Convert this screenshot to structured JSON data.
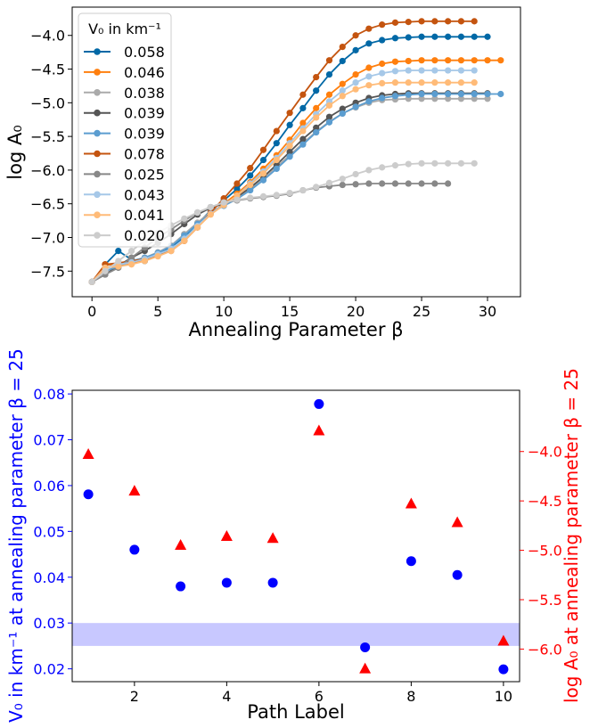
{
  "chart_data": [
    {
      "type": "line",
      "xlabel": "Annealing Parameter β",
      "ylabel": "log A₀",
      "xlim": [
        -1.5,
        32.5
      ],
      "ylim": [
        -7.88,
        -3.58
      ],
      "x_ticks": [
        0,
        5,
        10,
        15,
        20,
        25,
        30
      ],
      "x_tick_labels": [
        "0",
        "5",
        "10",
        "15",
        "20",
        "25",
        "30"
      ],
      "y_ticks": [
        -7.5,
        -7.0,
        -6.5,
        -6.0,
        -5.5,
        -5.0,
        -4.5,
        -4.0
      ],
      "y_tick_labels": [
        "−7.5",
        "−7.0",
        "−6.5",
        "−6.0",
        "−5.5",
        "−5.0",
        "−4.5",
        "−4.0"
      ],
      "grid": false,
      "legend": {
        "title": "V₀ in km⁻¹",
        "placement": "upper-left"
      },
      "series": [
        {
          "name": "0.058",
          "color": "#0068a6",
          "x": [
            0,
            1,
            2,
            3,
            4,
            5,
            6,
            7,
            8,
            9,
            10,
            11,
            12,
            13,
            14,
            15,
            16,
            17,
            18,
            19,
            20,
            21,
            22,
            23,
            24,
            25,
            26,
            27,
            28,
            29,
            30
          ],
          "values": [
            -7.66,
            -7.4,
            -7.2,
            -7.33,
            -7.35,
            -7.25,
            -7.15,
            -7.0,
            -6.8,
            -6.6,
            -6.45,
            -6.28,
            -6.08,
            -5.85,
            -5.6,
            -5.33,
            -5.08,
            -4.82,
            -4.58,
            -4.38,
            -4.22,
            -4.12,
            -4.07,
            -4.04,
            -4.03,
            -4.02,
            -4.02,
            -4.02,
            -4.02,
            -4.02,
            -4.02
          ]
        },
        {
          "name": "0.046",
          "color": "#ff7f0e",
          "x": [
            0,
            1,
            2,
            3,
            4,
            5,
            6,
            7,
            8,
            9,
            10,
            11,
            12,
            13,
            14,
            15,
            16,
            17,
            18,
            19,
            20,
            21,
            22,
            23,
            24,
            25,
            26,
            27,
            28,
            29,
            30,
            31
          ],
          "values": [
            -7.66,
            -7.4,
            -7.42,
            -7.38,
            -7.33,
            -7.25,
            -7.18,
            -7.05,
            -6.85,
            -6.65,
            -6.5,
            -6.35,
            -6.18,
            -5.98,
            -5.78,
            -5.55,
            -5.3,
            -5.08,
            -4.88,
            -4.72,
            -4.58,
            -4.48,
            -4.42,
            -4.39,
            -4.38,
            -4.37,
            -4.37,
            -4.37,
            -4.37,
            -4.37,
            -4.37,
            -4.37
          ]
        },
        {
          "name": "0.038",
          "color": "#aaaaaa",
          "x": [
            0,
            1,
            2,
            3,
            4,
            5,
            6,
            7,
            8,
            9,
            10,
            11,
            12,
            13,
            14,
            15,
            16,
            17,
            18,
            19,
            20,
            21,
            22,
            23,
            24,
            25,
            26,
            27,
            28,
            29,
            30
          ],
          "values": [
            -7.66,
            -7.5,
            -7.43,
            -7.35,
            -7.3,
            -7.22,
            -7.12,
            -6.95,
            -6.78,
            -6.62,
            -6.52,
            -6.42,
            -6.28,
            -6.12,
            -5.95,
            -5.78,
            -5.6,
            -5.43,
            -5.28,
            -5.16,
            -5.07,
            -5.0,
            -4.96,
            -4.95,
            -4.94,
            -4.94,
            -4.94,
            -4.94,
            -4.94,
            -4.94,
            -4.94
          ]
        },
        {
          "name": "0.039",
          "color": "#555555",
          "x": [
            0,
            1,
            2,
            3,
            4,
            5,
            6,
            7,
            8,
            9,
            10,
            11,
            12,
            13,
            14,
            15,
            16,
            17,
            18,
            19,
            20,
            21,
            22,
            23,
            24,
            25,
            26,
            27,
            28,
            29,
            30
          ],
          "values": [
            -7.66,
            -7.55,
            -7.42,
            -7.3,
            -7.2,
            -7.08,
            -6.95,
            -6.8,
            -6.66,
            -6.56,
            -6.5,
            -6.4,
            -6.26,
            -6.1,
            -5.92,
            -5.73,
            -5.54,
            -5.37,
            -5.21,
            -5.09,
            -5.0,
            -4.93,
            -4.89,
            -4.87,
            -4.86,
            -4.86,
            -4.86,
            -4.86,
            -4.86,
            -4.86,
            -4.86
          ]
        },
        {
          "name": "0.039",
          "color": "#5b9dd0",
          "x": [
            0,
            1,
            2,
            3,
            4,
            5,
            6,
            7,
            8,
            9,
            10,
            11,
            12,
            13,
            14,
            15,
            16,
            17,
            18,
            19,
            20,
            21,
            22,
            23,
            24,
            25,
            26,
            27,
            28,
            29,
            30,
            31
          ],
          "values": [
            -7.66,
            -7.5,
            -7.43,
            -7.35,
            -7.3,
            -7.23,
            -7.13,
            -6.97,
            -6.8,
            -6.64,
            -6.53,
            -6.43,
            -6.3,
            -6.15,
            -5.98,
            -5.8,
            -5.62,
            -5.44,
            -5.29,
            -5.16,
            -5.06,
            -4.98,
            -4.93,
            -4.9,
            -4.88,
            -4.87,
            -4.87,
            -4.87,
            -4.87,
            -4.87,
            -4.87,
            -4.87
          ]
        },
        {
          "name": "0.078",
          "color": "#c4540f",
          "x": [
            0,
            1,
            2,
            3,
            4,
            5,
            6,
            7,
            8,
            9,
            10,
            11,
            12,
            13,
            14,
            15,
            16,
            17,
            18,
            19,
            20,
            21,
            22,
            23,
            24,
            25,
            26,
            27,
            28,
            29
          ],
          "values": [
            -7.66,
            -7.4,
            -7.38,
            -7.35,
            -7.32,
            -7.27,
            -7.2,
            -7.05,
            -6.85,
            -6.63,
            -6.42,
            -6.2,
            -5.97,
            -5.7,
            -5.42,
            -5.15,
            -4.88,
            -4.62,
            -4.37,
            -4.17,
            -4.0,
            -3.9,
            -3.84,
            -3.81,
            -3.8,
            -3.79,
            -3.79,
            -3.79,
            -3.79,
            -3.79
          ]
        },
        {
          "name": "0.025",
          "color": "#888888",
          "x": [
            0,
            1,
            2,
            3,
            4,
            5,
            6,
            7,
            8,
            9,
            10,
            11,
            12,
            13,
            14,
            15,
            16,
            17,
            18,
            19,
            20,
            21,
            22,
            23,
            24,
            25,
            26,
            27
          ],
          "values": [
            -7.66,
            -7.55,
            -7.45,
            -7.3,
            -7.15,
            -7.0,
            -6.88,
            -6.75,
            -6.63,
            -6.55,
            -6.48,
            -6.45,
            -6.42,
            -6.4,
            -6.38,
            -6.35,
            -6.3,
            -6.26,
            -6.24,
            -6.22,
            -6.21,
            -6.2,
            -6.2,
            -6.2,
            -6.2,
            -6.2,
            -6.2,
            -6.2
          ]
        },
        {
          "name": "0.043",
          "color": "#a6c8e8",
          "x": [
            0,
            1,
            2,
            3,
            4,
            5,
            6,
            7,
            8,
            9,
            10,
            11,
            12,
            13,
            14,
            15,
            16,
            17,
            18,
            19,
            20,
            21,
            22,
            23,
            24,
            25,
            26,
            27,
            28,
            29
          ],
          "values": [
            -7.66,
            -7.45,
            -7.4,
            -7.37,
            -7.32,
            -7.25,
            -7.17,
            -7.02,
            -6.83,
            -6.65,
            -6.52,
            -6.38,
            -6.2,
            -6.02,
            -5.82,
            -5.6,
            -5.38,
            -5.17,
            -4.98,
            -4.82,
            -4.7,
            -4.61,
            -4.56,
            -4.53,
            -4.52,
            -4.52,
            -4.52,
            -4.52,
            -4.52,
            -4.52
          ]
        },
        {
          "name": "0.041",
          "color": "#ffbb78",
          "x": [
            0,
            1,
            2,
            3,
            4,
            5,
            6,
            7,
            8,
            9,
            10,
            11,
            12,
            13,
            14,
            15,
            16,
            17,
            18,
            19,
            20,
            21,
            22,
            23,
            24,
            25,
            26,
            27,
            28,
            29
          ],
          "values": [
            -7.66,
            -7.45,
            -7.43,
            -7.4,
            -7.35,
            -7.28,
            -7.2,
            -7.05,
            -6.85,
            -6.66,
            -6.52,
            -6.38,
            -6.22,
            -6.05,
            -5.85,
            -5.64,
            -5.42,
            -5.22,
            -5.04,
            -4.9,
            -4.8,
            -4.74,
            -4.71,
            -4.7,
            -4.7,
            -4.7,
            -4.7,
            -4.7,
            -4.7,
            -4.7
          ]
        },
        {
          "name": "0.020",
          "color": "#cccccc",
          "x": [
            0,
            1,
            2,
            3,
            4,
            5,
            6,
            7,
            8,
            9,
            10,
            11,
            12,
            13,
            14,
            15,
            16,
            17,
            18,
            19,
            20,
            21,
            22,
            23,
            24,
            25,
            26,
            27,
            28,
            29
          ],
          "values": [
            -7.66,
            -7.5,
            -7.35,
            -7.2,
            -7.05,
            -6.93,
            -6.82,
            -6.72,
            -6.63,
            -6.55,
            -6.48,
            -6.44,
            -6.41,
            -6.39,
            -6.37,
            -6.34,
            -6.3,
            -6.25,
            -6.19,
            -6.13,
            -6.06,
            -6.0,
            -5.96,
            -5.93,
            -5.91,
            -5.9,
            -5.9,
            -5.9,
            -5.9,
            -5.9
          ]
        }
      ]
    },
    {
      "type": "scatter",
      "xlabel": "Path Label",
      "ylabel": "V₀ in km⁻¹ at annealing parameter β = 25",
      "y2label": "log A₀ at annealing parameter β = 25",
      "xlim": [
        0.65,
        10.35
      ],
      "ylim": [
        0.0172,
        0.0808
      ],
      "y2lim": [
        -6.33,
        -3.38
      ],
      "x_ticks": [
        2,
        4,
        6,
        8,
        10
      ],
      "x_tick_labels": [
        "2",
        "4",
        "6",
        "8",
        "10"
      ],
      "y_ticks": [
        0.02,
        0.03,
        0.04,
        0.05,
        0.06,
        0.07,
        0.08
      ],
      "y_tick_labels": [
        "0.02",
        "0.03",
        "0.04",
        "0.05",
        "0.06",
        "0.07",
        "0.08"
      ],
      "y2_ticks": [
        -6.0,
        -5.5,
        -5.0,
        -4.5,
        -4.0
      ],
      "y2_tick_labels": [
        "−6.0",
        "−5.5",
        "−5.0",
        "−4.5",
        "−4.0"
      ],
      "grid": false,
      "shaded_band": {
        "y_from": 0.025,
        "y_to": 0.03,
        "color": "#c8c8ff"
      },
      "left_color": "#0000ff",
      "right_color": "#ff0000",
      "series": [
        {
          "marker": "circle",
          "axis": "left",
          "color": "#0000ff",
          "x": [
            1,
            2,
            3,
            4,
            5,
            6,
            7,
            8,
            9,
            10
          ],
          "values": [
            0.0581,
            0.046,
            0.038,
            0.0388,
            0.0388,
            0.0778,
            0.0247,
            0.0435,
            0.0405,
            0.0199
          ]
        },
        {
          "marker": "triangle",
          "axis": "right",
          "color": "#ff0000",
          "x": [
            1,
            2,
            3,
            4,
            5,
            6,
            7,
            8,
            9,
            10
          ],
          "values": [
            -4.03,
            -4.4,
            -4.95,
            -4.86,
            -4.88,
            -3.79,
            -6.2,
            -4.53,
            -4.72,
            -5.92
          ]
        }
      ]
    }
  ]
}
